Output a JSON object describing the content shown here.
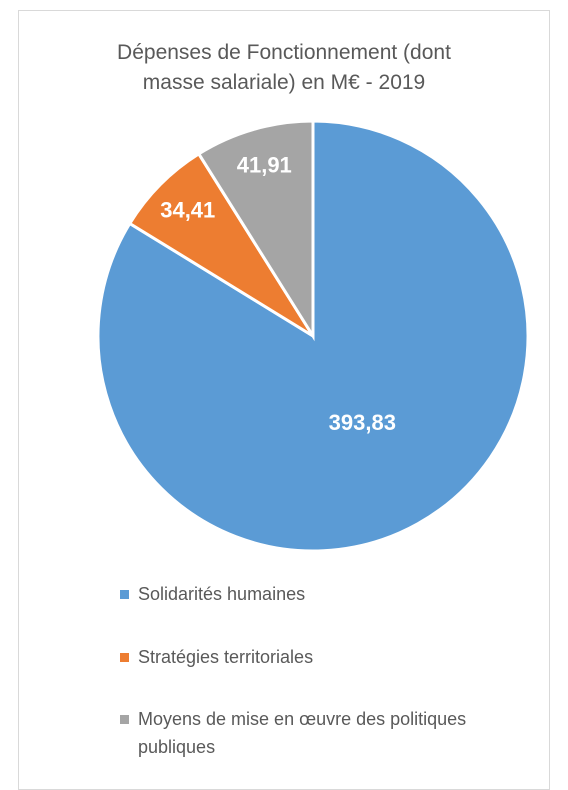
{
  "chart_data": {
    "type": "pie",
    "title": "Dépenses de Fonctionnement (dont masse salariale) en M€ - 2019",
    "categories": [
      "Solidarités humaines",
      "Stratégies territoriales",
      "Moyens de mise en œuvre des politiques publiques"
    ],
    "values": [
      393.83,
      34.41,
      41.91
    ],
    "value_labels": [
      "393,83",
      "34,41",
      "41,91"
    ],
    "colors": [
      "#5b9bd5",
      "#ed7d31",
      "#a5a5a5"
    ]
  }
}
